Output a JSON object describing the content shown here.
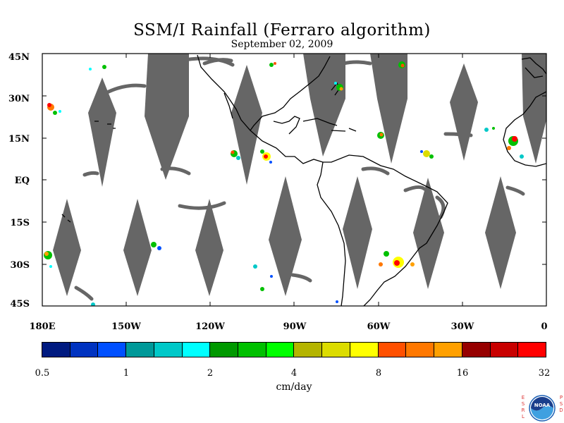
{
  "title": "SSM/I Rainfall (Ferraro algorithm)",
  "subtitle": "September 02, 2009",
  "lat_labels": [
    "45N",
    "30N",
    "15N",
    "EQ",
    "15S",
    "30S",
    "45S"
  ],
  "lon_labels": [
    "180E",
    "150W",
    "120W",
    "90W",
    "60W",
    "30W",
    "0"
  ],
  "colorbar": {
    "tick_labels": [
      "0.5",
      "1",
      "2",
      "4",
      "8",
      "16",
      "32"
    ],
    "units": "cm/day",
    "colors": [
      "#001a80",
      "#0033c0",
      "#0050ff",
      "#009999",
      "#00c8c8",
      "#00ffff",
      "#009900",
      "#00c000",
      "#00ff00",
      "#b4b400",
      "#dcdc00",
      "#ffff00",
      "#ff5000",
      "#ff7800",
      "#ffa000",
      "#960000",
      "#c80000",
      "#ff0000"
    ]
  },
  "colors": {
    "no_data_swath": "#666666",
    "land_outline": "#000000"
  },
  "logo": {
    "left_text": "ESRL",
    "right_text": "PSD",
    "center_text": "NOAA"
  }
}
